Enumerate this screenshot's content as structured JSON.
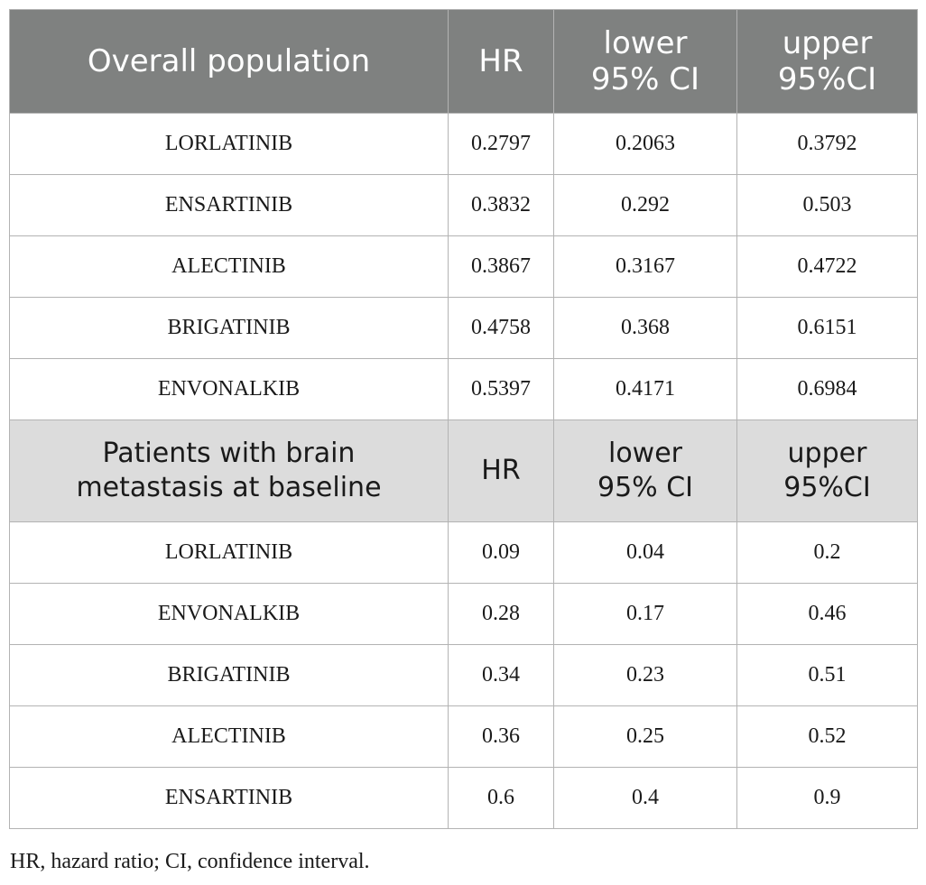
{
  "sections": [
    {
      "header": {
        "group": "Overall population",
        "hr": "HR",
        "lower_1": "lower",
        "lower_2": "95% CI",
        "upper_1": "upper",
        "upper_2": "95%CI"
      },
      "rows": [
        {
          "drug": "LORLATINIB",
          "hr": "0.2797",
          "lower": "0.2063",
          "upper": "0.3792"
        },
        {
          "drug": "ENSARTINIB",
          "hr": "0.3832",
          "lower": "0.292",
          "upper": "0.503"
        },
        {
          "drug": "ALECTINIB",
          "hr": "0.3867",
          "lower": "0.3167",
          "upper": "0.4722"
        },
        {
          "drug": "BRIGATINIB",
          "hr": "0.4758",
          "lower": "0.368",
          "upper": "0.6151"
        },
        {
          "drug": "ENVONALKIB",
          "hr": "0.5397",
          "lower": "0.4171",
          "upper": "0.6984"
        }
      ]
    },
    {
      "header": {
        "group_1": "Patients with brain",
        "group_2": "metastasis at baseline",
        "hr": "HR",
        "lower_1": "lower",
        "lower_2": "95% CI",
        "upper_1": "upper",
        "upper_2": "95%CI"
      },
      "rows": [
        {
          "drug": "LORLATINIB",
          "hr": "0.09",
          "lower": "0.04",
          "upper": "0.2"
        },
        {
          "drug": "ENVONALKIB",
          "hr": "0.28",
          "lower": "0.17",
          "upper": "0.46"
        },
        {
          "drug": "BRIGATINIB",
          "hr": "0.34",
          "lower": "0.23",
          "upper": "0.51"
        },
        {
          "drug": "ALECTINIB",
          "hr": "0.36",
          "lower": "0.25",
          "upper": "0.52"
        },
        {
          "drug": "ENSARTINIB",
          "hr": "0.6",
          "lower": "0.4",
          "upper": "0.9"
        }
      ]
    }
  ],
  "footnote": "HR, hazard ratio; CI, confidence interval.",
  "colors": {
    "header_main_bg": "#7f8180",
    "header_sub_bg": "#dcdcdc",
    "border": "#b3b3b3"
  }
}
